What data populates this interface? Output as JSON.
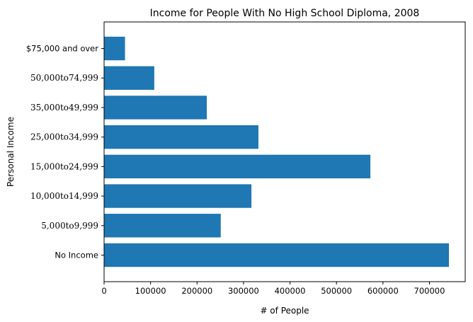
{
  "chart_data": {
    "type": "bar",
    "orientation": "horizontal",
    "title": "Income for People With No High School Diploma, 2008",
    "xlabel": "# of People",
    "ylabel": "Personal Income",
    "xlim": [
      0,
      777000
    ],
    "x_ticks": [
      0,
      100000,
      200000,
      300000,
      400000,
      500000,
      600000,
      700000
    ],
    "categories": [
      "No Income",
      "5,000to9,999",
      "10,000to14,999",
      "15,000to24,999",
      "25,000to34,999",
      "35,000to49,999",
      "50,000to74,999",
      "$75,000 and over"
    ],
    "values": [
      742000,
      251000,
      317000,
      573000,
      332000,
      221000,
      108000,
      45000
    ],
    "bar_color": "#1f77b4",
    "grid": false,
    "legend": "none"
  }
}
